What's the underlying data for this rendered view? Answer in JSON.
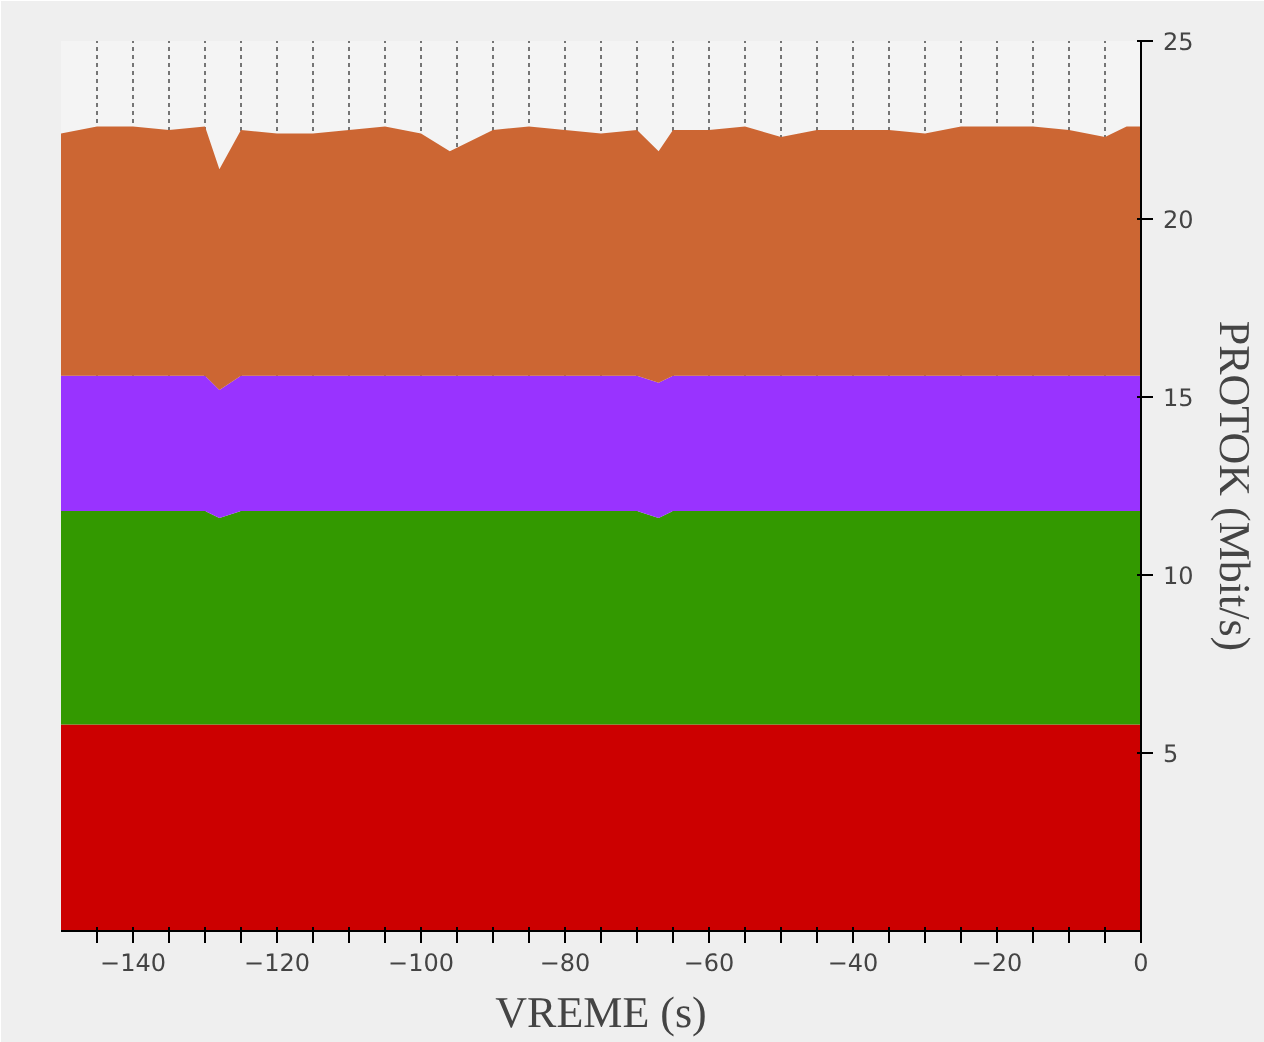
{
  "chart_data": {
    "type": "area",
    "stacked": true,
    "xlabel": "VREME (s)",
    "ylabel": "PROTOK (Mbit/s)",
    "x": [
      -150,
      -145,
      -140,
      -135,
      -130,
      -128,
      -125,
      -120,
      -115,
      -110,
      -105,
      -100,
      -96,
      -90,
      -85,
      -80,
      -75,
      -70,
      -67,
      -65,
      -60,
      -55,
      -50,
      -45,
      -40,
      -35,
      -30,
      -25,
      -20,
      -15,
      -10,
      -5,
      -2,
      0
    ],
    "series": [
      {
        "color": "#cc0000",
        "values": [
          5.8,
          5.8,
          5.8,
          5.8,
          5.8,
          5.8,
          5.8,
          5.8,
          5.8,
          5.8,
          5.8,
          5.8,
          5.8,
          5.8,
          5.8,
          5.8,
          5.8,
          5.8,
          5.8,
          5.8,
          5.8,
          5.8,
          5.8,
          5.8,
          5.8,
          5.8,
          5.8,
          5.8,
          5.8,
          5.8,
          5.8,
          5.8,
          5.8,
          5.8
        ]
      },
      {
        "color": "#339900",
        "values": [
          6,
          6,
          6,
          6,
          6,
          5.8,
          6,
          6,
          6,
          6,
          6,
          6,
          6,
          6,
          6,
          6,
          6,
          6,
          5.8,
          6,
          6,
          6,
          6,
          6,
          6,
          6,
          6,
          6,
          6,
          6,
          6,
          6,
          6,
          6
        ]
      },
      {
        "color": "#9933ff",
        "values": [
          3.8,
          3.8,
          3.8,
          3.8,
          3.8,
          3.6,
          3.8,
          3.8,
          3.8,
          3.8,
          3.8,
          3.8,
          3.8,
          3.8,
          3.8,
          3.8,
          3.8,
          3.8,
          3.8,
          3.8,
          3.8,
          3.8,
          3.8,
          3.8,
          3.8,
          3.8,
          3.8,
          3.8,
          3.8,
          3.8,
          3.8,
          3.8,
          3.8,
          3.8
        ]
      },
      {
        "color": "#cc6633",
        "values": [
          6.8,
          7,
          7,
          6.9,
          7,
          6.2,
          6.9,
          6.8,
          6.8,
          6.9,
          7,
          6.8,
          6.3,
          6.9,
          7,
          6.9,
          6.8,
          6.9,
          6.5,
          6.9,
          6.9,
          7,
          6.7,
          6.9,
          6.9,
          6.9,
          6.8,
          7,
          7,
          7,
          6.9,
          6.7,
          7,
          7
        ]
      }
    ],
    "xlim": [
      -150,
      0
    ],
    "ylim": [
      0,
      25
    ],
    "xticks": [
      {
        "value": -145,
        "label": null
      },
      -140,
      {
        "value": -135,
        "label": null
      },
      {
        "value": -130,
        "label": null
      },
      {
        "value": -125,
        "label": null
      },
      -120,
      {
        "value": -115,
        "label": null
      },
      {
        "value": -110,
        "label": null
      },
      {
        "value": -105,
        "label": null
      },
      -100,
      {
        "value": -95,
        "label": null
      },
      {
        "value": -90,
        "label": null
      },
      {
        "value": -85,
        "label": null
      },
      -80,
      {
        "value": -75,
        "label": null
      },
      {
        "value": -70,
        "label": null
      },
      {
        "value": -65,
        "label": null
      },
      -60,
      {
        "value": -55,
        "label": null
      },
      {
        "value": -50,
        "label": null
      },
      {
        "value": -45,
        "label": null
      },
      -40,
      {
        "value": -35,
        "label": null
      },
      {
        "value": -30,
        "label": null
      },
      {
        "value": -25,
        "label": null
      },
      -20,
      {
        "value": -15,
        "label": null
      },
      {
        "value": -10,
        "label": null
      },
      {
        "value": -5,
        "label": null
      },
      0
    ],
    "yticks": [
      5,
      10,
      15,
      20,
      25
    ],
    "grid": "x"
  }
}
